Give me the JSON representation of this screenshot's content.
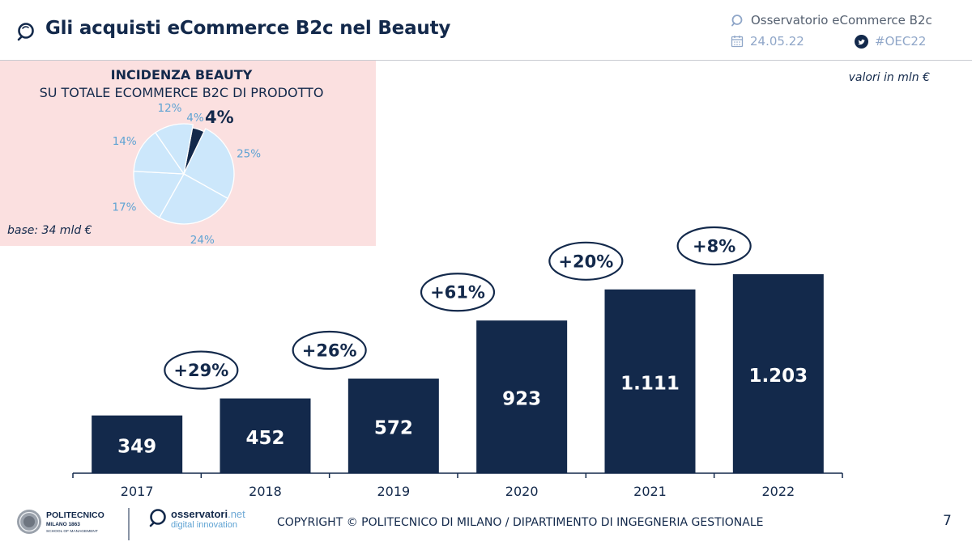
{
  "header": {
    "title": "Gli acquisti eCommerce B2c nel Beauty",
    "observatory": "Osservatorio eCommerce B2c",
    "date": "24.05.22",
    "hashtag": "#OEC22"
  },
  "pie_panel": {
    "title_line1": "INCIDENZA BEAUTY",
    "title_line2": "SU TOTALE ECOMMERCE B2C DI PRODOTTO",
    "base_note": "base: 34 mld €"
  },
  "unit_note": "valori in mln €",
  "chart_data": [
    {
      "type": "bar",
      "title": "Gli acquisti eCommerce B2c nel Beauty",
      "ylabel": "valori in mln €",
      "categories": [
        "2017",
        "2018",
        "2019",
        "2020",
        "2021",
        "2022"
      ],
      "values": [
        349,
        452,
        572,
        923,
        1111,
        1203
      ],
      "value_labels": [
        "349",
        "452",
        "572",
        "923",
        "1.111",
        "1.203"
      ],
      "growth_labels": [
        "+29%",
        "+26%",
        "+61%",
        "+20%",
        "+8%"
      ],
      "ylim": [
        0,
        1300
      ],
      "grid": false,
      "color": "#13294b"
    },
    {
      "type": "pie",
      "title": "INCIDENZA BEAUTY SU TOTALE ECOMMERCE B2C DI PRODOTTO",
      "values": [
        4,
        25,
        24,
        17,
        14,
        12,
        4
      ],
      "labels": [
        "4%",
        "25%",
        "24%",
        "17%",
        "14%",
        "12%",
        "4%"
      ],
      "highlight_index": 0,
      "highlight_color": "#13294b",
      "slice_color": "#cce7fb",
      "label_color": "#5fa3d3"
    }
  ],
  "footer": {
    "politecnico_name": "POLITECNICO",
    "politecnico_sub": "MILANO 1863",
    "politecnico_school": "SCHOOL OF MANAGEMENT",
    "osservatori_word": "osservatori",
    "osservatori_net": ".net",
    "osservatori_sub": "digital innovation",
    "copyright": "COPYRIGHT © POLITECNICO DI MILANO / DIPARTIMENTO DI INGEGNERIA GESTIONALE",
    "page_number": "7"
  }
}
